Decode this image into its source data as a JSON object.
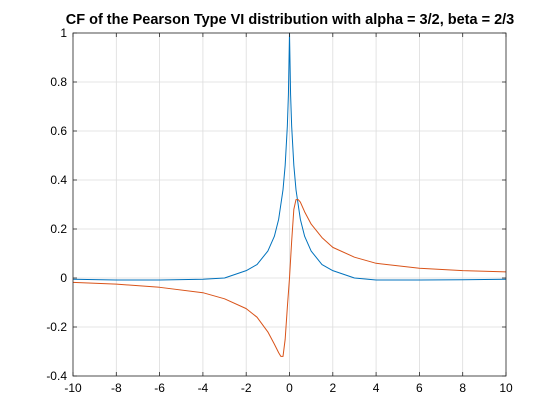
{
  "chart_data": {
    "type": "line",
    "title": "CF of the Pearson Type VI distribution with alpha = 3/2, beta = 2/3",
    "xlabel": "",
    "ylabel": "",
    "xlim": [
      -10,
      10
    ],
    "ylim": [
      -0.4,
      1
    ],
    "x_ticks": [
      -10,
      -8,
      -6,
      -4,
      -2,
      0,
      2,
      4,
      6,
      8,
      10
    ],
    "x_tick_labels": [
      "-10",
      "-8",
      "-6",
      "-4",
      "-2",
      "0",
      "2",
      "4",
      "6",
      "8",
      "10"
    ],
    "y_ticks": [
      -0.4,
      -0.2,
      0,
      0.2,
      0.4,
      0.6,
      0.8,
      1
    ],
    "y_tick_labels": [
      "-0.4",
      "-0.2",
      "0",
      "0.2",
      "0.4",
      "0.6",
      "0.8",
      "1"
    ],
    "grid": true,
    "series": [
      {
        "color": "#0072BD",
        "x": [
          -10,
          -8,
          -6,
          -4,
          -3,
          -2,
          -1.5,
          -1,
          -0.7,
          -0.5,
          -0.3,
          -0.2,
          -0.1,
          -0.05,
          0,
          0.05,
          0.1,
          0.2,
          0.3,
          0.5,
          0.7,
          1,
          1.5,
          2,
          3,
          4,
          6,
          8,
          10
        ],
        "values": [
          -0.005,
          -0.008,
          -0.008,
          -0.005,
          0.0,
          0.03,
          0.055,
          0.11,
          0.17,
          0.24,
          0.36,
          0.46,
          0.62,
          0.75,
          1.0,
          0.75,
          0.62,
          0.46,
          0.36,
          0.24,
          0.17,
          0.11,
          0.055,
          0.03,
          0.0,
          -0.008,
          -0.008,
          -0.007,
          -0.005
        ]
      },
      {
        "color": "#D95319",
        "x": [
          -10,
          -8,
          -6,
          -4,
          -3,
          -2,
          -1.5,
          -1,
          -0.7,
          -0.5,
          -0.4,
          -0.3,
          -0.2,
          -0.1,
          0,
          0.1,
          0.2,
          0.3,
          0.4,
          0.5,
          0.7,
          1,
          1.5,
          2,
          3,
          4,
          6,
          8,
          10
        ],
        "values": [
          -0.018,
          -0.025,
          -0.038,
          -0.06,
          -0.085,
          -0.125,
          -0.16,
          -0.22,
          -0.27,
          -0.305,
          -0.32,
          -0.32,
          -0.25,
          -0.12,
          0.0,
          0.15,
          0.28,
          0.32,
          0.32,
          0.31,
          0.27,
          0.22,
          0.165,
          0.125,
          0.085,
          0.06,
          0.04,
          0.03,
          0.025
        ]
      }
    ]
  }
}
